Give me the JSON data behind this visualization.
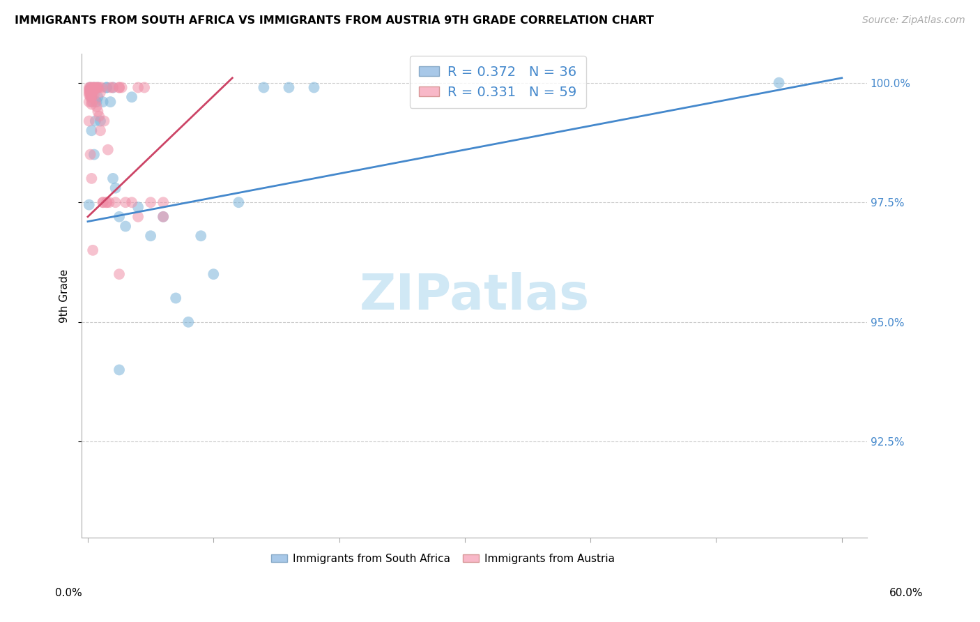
{
  "title": "IMMIGRANTS FROM SOUTH AFRICA VS IMMIGRANTS FROM AUSTRIA 9TH GRADE CORRELATION CHART",
  "source": "Source: ZipAtlas.com",
  "ylabel": "9th Grade",
  "ytick_labels": [
    "92.5%",
    "95.0%",
    "97.5%",
    "100.0%"
  ],
  "ytick_values": [
    0.925,
    0.95,
    0.975,
    1.0
  ],
  "xlim": [
    -0.005,
    0.62
  ],
  "ylim": [
    0.905,
    1.006
  ],
  "blue_color": "#7ab3d9",
  "pink_color": "#f090a8",
  "trendline_blue_color": "#4488cc",
  "trendline_pink_color": "#cc4466",
  "trendline_blue": [
    [
      0.0,
      0.6
    ],
    [
      0.971,
      1.001
    ]
  ],
  "trendline_pink": [
    [
      0.0,
      0.115
    ],
    [
      0.972,
      1.001
    ]
  ],
  "legend_text_color": "#4488cc",
  "watermark_color": "#d0e8f5",
  "grid_color": "#cccccc",
  "sa_x": [
    0.001,
    0.002,
    0.003,
    0.004,
    0.005,
    0.006,
    0.007,
    0.008,
    0.01,
    0.012,
    0.015,
    0.018,
    0.02,
    0.022,
    0.025,
    0.03,
    0.035,
    0.04,
    0.05,
    0.06,
    0.07,
    0.08,
    0.09,
    0.1,
    0.12,
    0.14,
    0.16,
    0.002,
    0.003,
    0.005,
    0.008,
    0.015,
    0.02,
    0.55,
    0.18,
    0.025
  ],
  "sa_y": [
    0.9745,
    0.9985,
    0.99,
    0.996,
    0.985,
    0.992,
    0.996,
    0.997,
    0.992,
    0.996,
    0.999,
    0.996,
    0.98,
    0.978,
    0.972,
    0.97,
    0.997,
    0.974,
    0.968,
    0.972,
    0.955,
    0.95,
    0.968,
    0.96,
    0.975,
    0.999,
    0.999,
    0.999,
    0.997,
    0.999,
    0.999,
    0.999,
    0.999,
    1.0,
    0.999,
    0.94
  ],
  "au_x": [
    0.001,
    0.001,
    0.001,
    0.001,
    0.002,
    0.002,
    0.002,
    0.002,
    0.002,
    0.003,
    0.003,
    0.003,
    0.003,
    0.003,
    0.004,
    0.004,
    0.004,
    0.005,
    0.005,
    0.005,
    0.006,
    0.006,
    0.007,
    0.007,
    0.008,
    0.008,
    0.009,
    0.009,
    0.01,
    0.01,
    0.011,
    0.012,
    0.012,
    0.013,
    0.015,
    0.015,
    0.016,
    0.017,
    0.018,
    0.02,
    0.022,
    0.025,
    0.027,
    0.03,
    0.035,
    0.04,
    0.045,
    0.05,
    0.06,
    0.001,
    0.001,
    0.002,
    0.025,
    0.04,
    0.06,
    0.003,
    0.004,
    0.025
  ],
  "au_y": [
    0.999,
    0.9985,
    0.998,
    0.9975,
    0.999,
    0.9985,
    0.998,
    0.9975,
    0.997,
    0.999,
    0.9975,
    0.997,
    0.996,
    0.9955,
    0.999,
    0.9985,
    0.998,
    0.999,
    0.9985,
    0.9975,
    0.999,
    0.996,
    0.999,
    0.995,
    0.999,
    0.994,
    0.999,
    0.993,
    0.998,
    0.99,
    0.999,
    0.975,
    0.975,
    0.992,
    0.975,
    0.975,
    0.986,
    0.975,
    0.999,
    0.999,
    0.975,
    0.999,
    0.999,
    0.975,
    0.975,
    0.999,
    0.999,
    0.975,
    0.975,
    0.996,
    0.992,
    0.985,
    0.999,
    0.972,
    0.972,
    0.98,
    0.965,
    0.96
  ]
}
